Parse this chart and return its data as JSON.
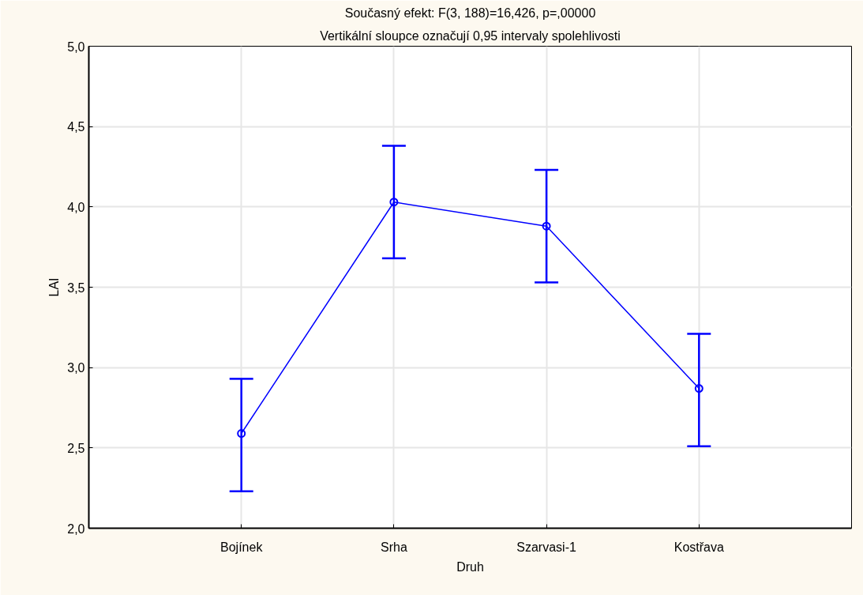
{
  "chart_data": {
    "type": "line",
    "title": "Současný efekt: F(3, 188)=16,426, p=,00000",
    "subtitle": "Vertikální sloupce označují 0,95 intervaly spolehlivosti",
    "xlabel": "Druh",
    "ylabel": "LAI",
    "categories": [
      "Bojínek",
      "Srha",
      "Szarvasi-1",
      "Kostřava"
    ],
    "series": [
      {
        "color": "#0000ff",
        "values": [
          2.59,
          4.03,
          3.88,
          2.87
        ],
        "errors": [
          [
            2.23,
            2.93
          ],
          [
            3.68,
            4.38
          ],
          [
            3.53,
            4.23
          ],
          [
            2.51,
            3.21
          ]
        ]
      }
    ],
    "ylim": [
      2.0,
      5.0
    ],
    "yticks": [
      {
        "value": 2.0,
        "label": "2,0"
      },
      {
        "value": 2.5,
        "label": "2,5"
      },
      {
        "value": 3.0,
        "label": "3,0"
      },
      {
        "value": 3.5,
        "label": "3,5"
      },
      {
        "value": 4.0,
        "label": "4,0"
      },
      {
        "value": 4.5,
        "label": "4,5"
      },
      {
        "value": 5.0,
        "label": "5,0"
      }
    ],
    "grid": true,
    "marker": "circle",
    "line_style": "solid"
  }
}
